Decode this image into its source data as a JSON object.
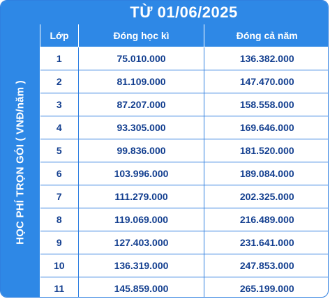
{
  "side_label": "HỌC PHÍ TRỌN GÓI ( VNĐ/năm )",
  "title": "TỪ 01/06/2025",
  "columns": [
    "Lớp",
    "Đóng học kì",
    "Đóng cả năm"
  ],
  "rows": [
    {
      "grade": "1",
      "semester": "75.010.000",
      "year": "136.382.000"
    },
    {
      "grade": "2",
      "semester": "81.109.000",
      "year": "147.470.000"
    },
    {
      "grade": "3",
      "semester": "87.207.000",
      "year": "158.558.000"
    },
    {
      "grade": "4",
      "semester": "93.305.000",
      "year": "169.646.000"
    },
    {
      "grade": "5",
      "semester": "99.836.000",
      "year": "181.520.000"
    },
    {
      "grade": "6",
      "semester": "103.996.000",
      "year": "189.084.000"
    },
    {
      "grade": "7",
      "semester": "111.279.000",
      "year": "202.325.000"
    },
    {
      "grade": "8",
      "semester": "119.069.000",
      "year": "216.489.000"
    },
    {
      "grade": "9",
      "semester": "127.403.000",
      "year": "231.641.000"
    },
    {
      "grade": "10",
      "semester": "136.319.000",
      "year": "247.853.000"
    },
    {
      "grade": "11",
      "semester": "145.859.000",
      "year": "265.199.000"
    }
  ],
  "colors": {
    "header_blue": "#2e88e6",
    "text_navy": "#123e8f",
    "border": "#2f7fe0"
  }
}
